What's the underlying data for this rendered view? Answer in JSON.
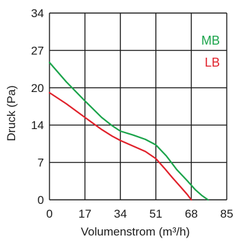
{
  "chart_data": {
    "type": "line",
    "xlabel": "Volumenstrom (m³/h)",
    "ylabel": "Druck (Pa)",
    "xlim": [
      0,
      85
    ],
    "ylim": [
      0,
      34
    ],
    "x_ticks": [
      "0",
      "17",
      "34",
      "51",
      "68",
      "85"
    ],
    "y_ticks": [
      "0",
      "7",
      "14",
      "20",
      "27",
      "34"
    ],
    "grid": true,
    "legend_position": "top-right",
    "series": [
      {
        "name": "MB",
        "color": "#1aa34a",
        "x": [
          0,
          8,
          17,
          25,
          30,
          34,
          40,
          46,
          51,
          56,
          61,
          66,
          70,
          73,
          76
        ],
        "y": [
          25,
          21.5,
          18,
          15,
          13.5,
          12.5,
          11.8,
          11,
          10,
          8,
          5.5,
          3.5,
          1.8,
          0.8,
          0
        ]
      },
      {
        "name": "LB",
        "color": "#e0202a",
        "x": [
          0,
          8,
          17,
          25,
          30,
          34,
          40,
          46,
          51,
          55,
          59,
          63,
          66,
          68
        ],
        "y": [
          19.5,
          17.5,
          15,
          12.8,
          11.6,
          10.8,
          9.8,
          8.8,
          7.5,
          5.8,
          4,
          2.3,
          1,
          0
        ]
      }
    ]
  }
}
